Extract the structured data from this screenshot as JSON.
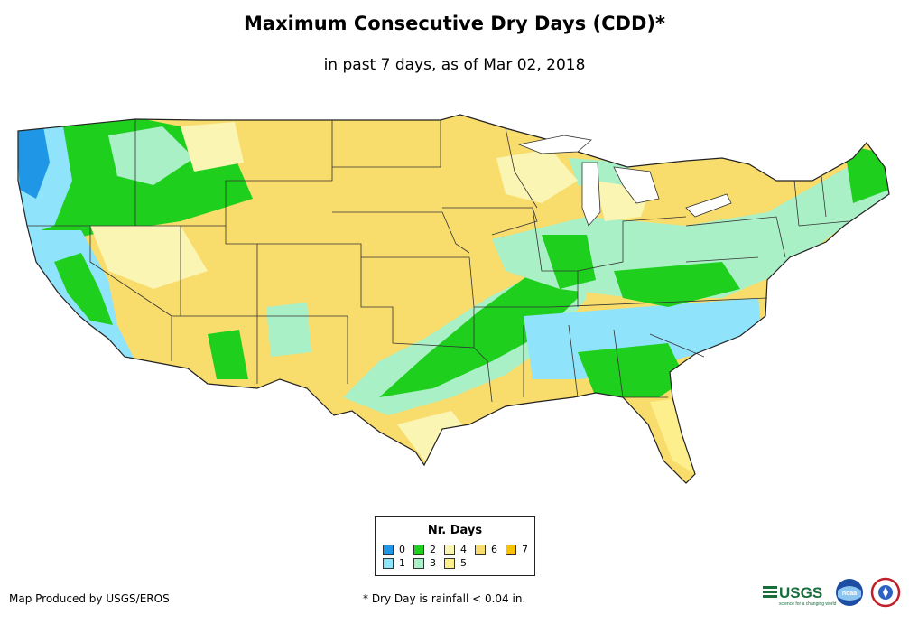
{
  "title": "Maximum Consecutive Dry Days (CDD)*",
  "subtitle": "in past 7 days, as of Mar 02, 2018",
  "legend": {
    "title": "Nr. Days",
    "items": [
      {
        "label": "0",
        "color": "#1f97e6"
      },
      {
        "label": "1",
        "color": "#8fe3fa"
      },
      {
        "label": "2",
        "color": "#1ecf1e"
      },
      {
        "label": "3",
        "color": "#aaf0c6"
      },
      {
        "label": "4",
        "color": "#fbf5b4"
      },
      {
        "label": "5",
        "color": "#fcef8c"
      },
      {
        "label": "6",
        "color": "#f8dc6c"
      },
      {
        "label": "7",
        "color": "#f7c300"
      }
    ]
  },
  "footer": {
    "producer": "Map Produced by USGS/EROS",
    "note": "* Dry Day is rainfall < 0.04 in."
  },
  "logos": {
    "usgs_text": "USGS",
    "usgs_tagline": "science for a changing world",
    "noaa_text": "noaa"
  }
}
